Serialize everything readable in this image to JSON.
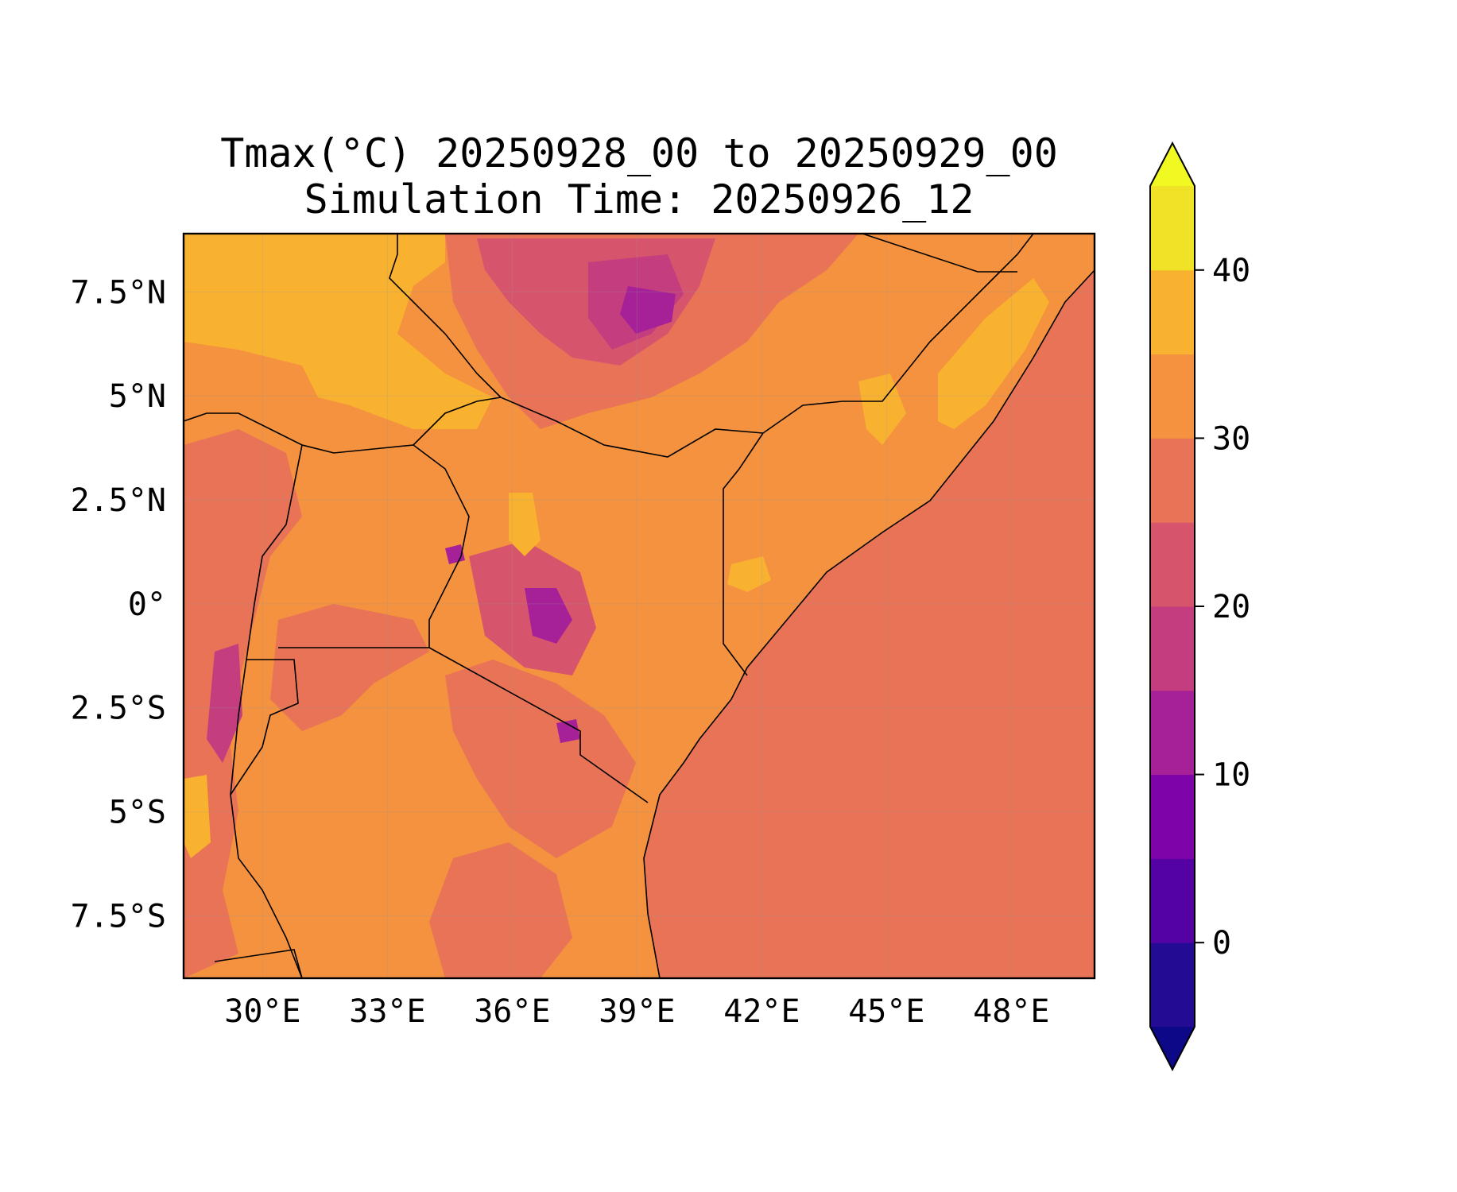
{
  "title": {
    "line1": "Tmax(°C) 20250928_00 to 20250929_00",
    "line2": "Simulation Time: 20250926_12"
  },
  "map": {
    "variable": "Tmax",
    "units": "°C",
    "extent": {
      "lon": [
        28.1,
        50.0
      ],
      "lat": [
        -9.0,
        8.9
      ]
    },
    "x_ticks": [
      {
        "value": 30,
        "label": "30°E"
      },
      {
        "value": 33,
        "label": "33°E"
      },
      {
        "value": 36,
        "label": "36°E"
      },
      {
        "value": 39,
        "label": "39°E"
      },
      {
        "value": 42,
        "label": "42°E"
      },
      {
        "value": 45,
        "label": "45°E"
      },
      {
        "value": 48,
        "label": "48°E"
      }
    ],
    "y_ticks": [
      {
        "value": 7.5,
        "label": "7.5°N"
      },
      {
        "value": 5,
        "label": "5°N"
      },
      {
        "value": 2.5,
        "label": "2.5°N"
      },
      {
        "value": 0,
        "label": "0°"
      },
      {
        "value": -2.5,
        "label": "2.5°S"
      },
      {
        "value": -5,
        "label": "5°S"
      },
      {
        "value": -7.5,
        "label": "7.5°S"
      }
    ],
    "gridlines": true,
    "background_value": 27.5
  },
  "colorbar": {
    "levels": [
      -5,
      0,
      5,
      10,
      15,
      20,
      25,
      30,
      35,
      40,
      45
    ],
    "colors": [
      "#240b94",
      "#5402a3",
      "#7e03a8",
      "#a62098",
      "#c43e7f",
      "#d6556d",
      "#e97357",
      "#f4923f",
      "#f9b22f",
      "#f0e226"
    ],
    "extend_min_color": "#0d0887",
    "extend_max_color": "#f0f921",
    "ticks": [
      {
        "value": 0,
        "label": "0"
      },
      {
        "value": 10,
        "label": "10"
      },
      {
        "value": 20,
        "label": "20"
      },
      {
        "value": 30,
        "label": "30"
      },
      {
        "value": 40,
        "label": "40"
      }
    ]
  }
}
